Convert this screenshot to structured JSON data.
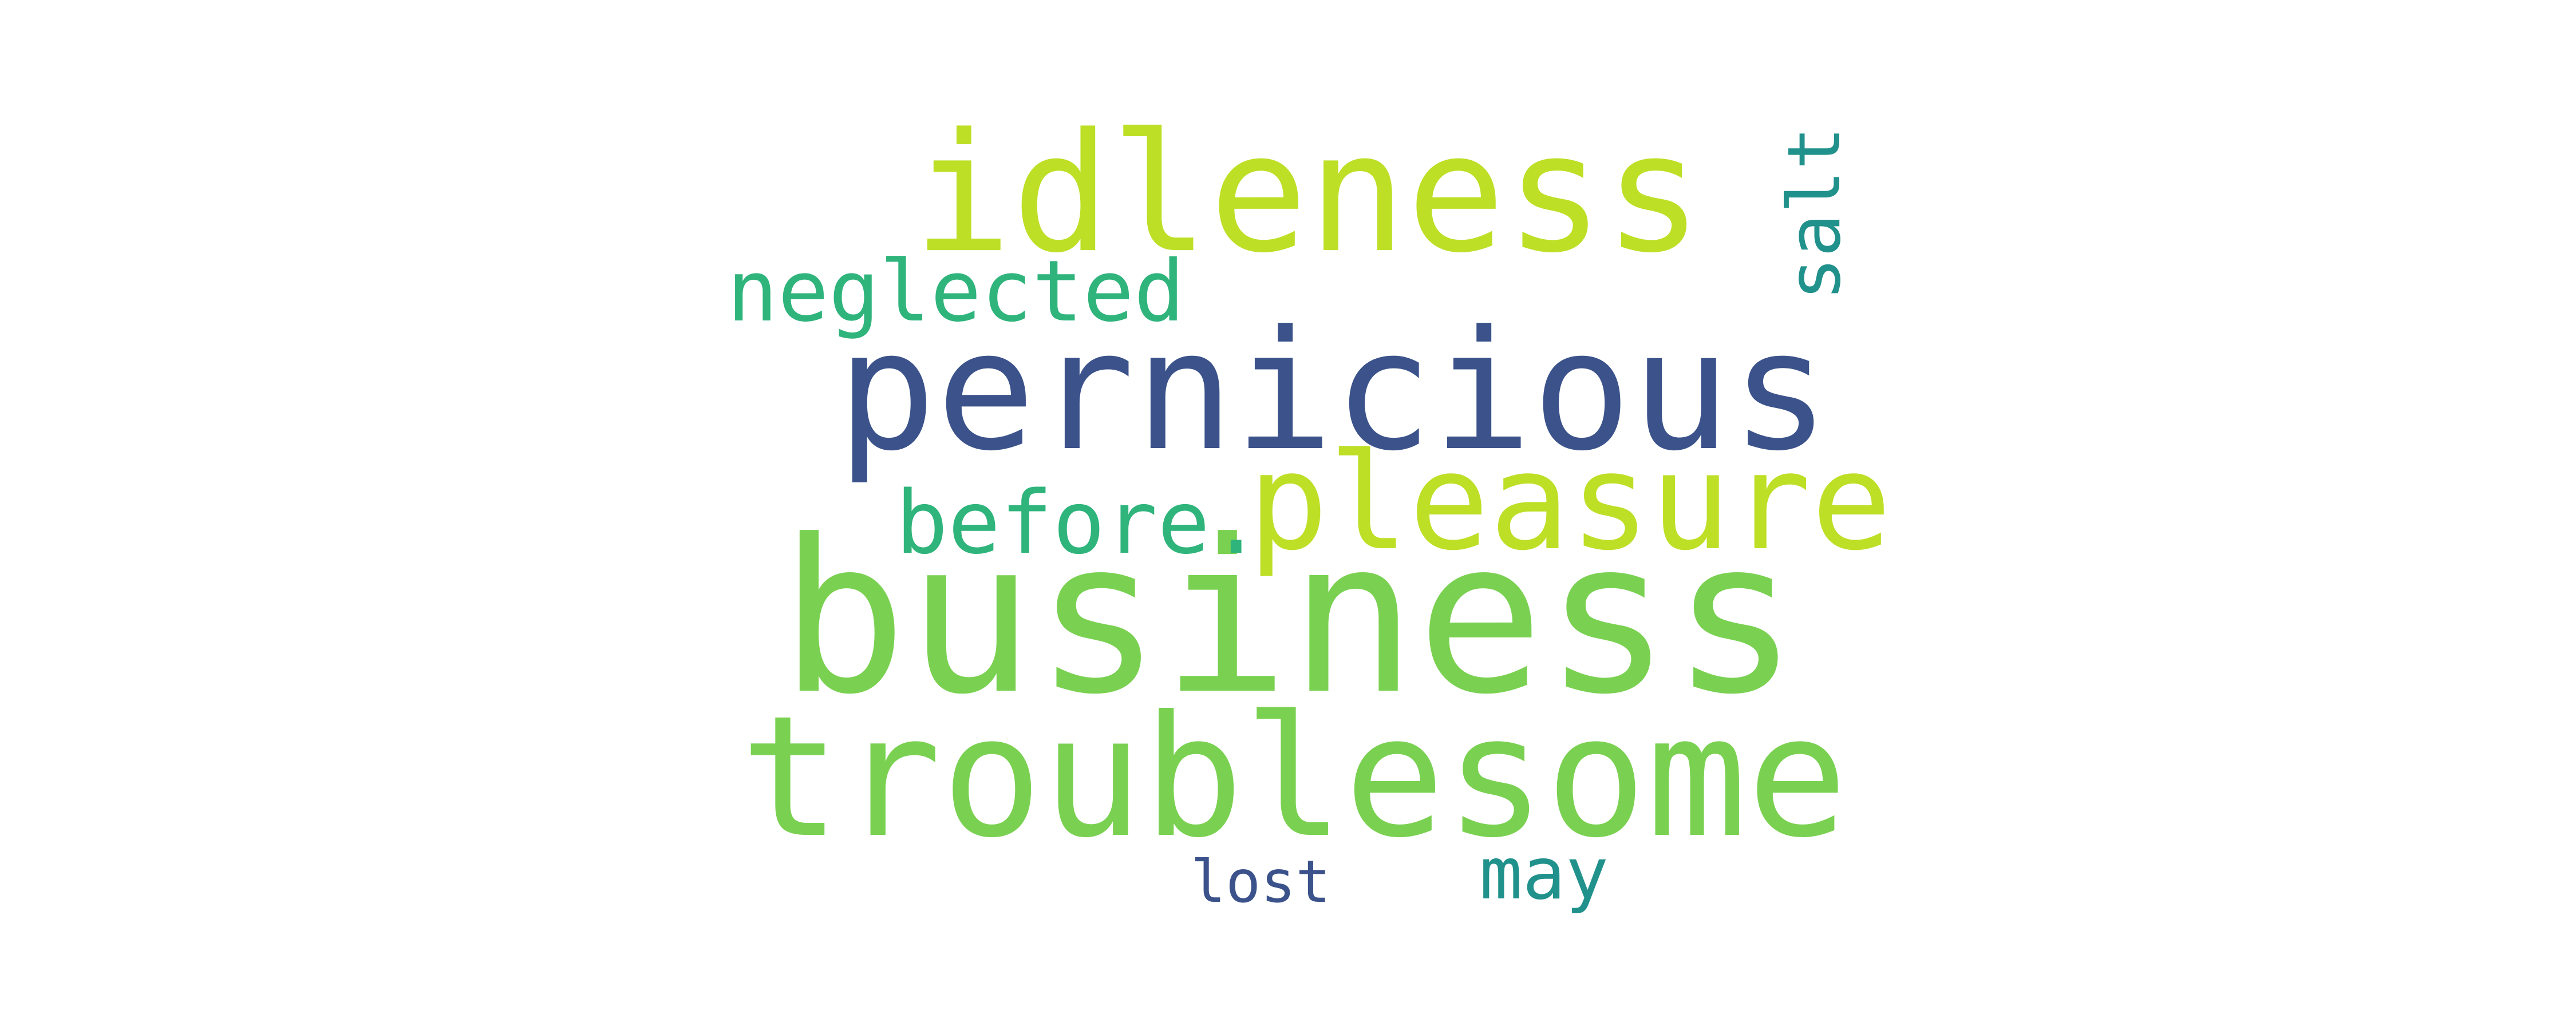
{
  "words": [
    {
      "text": "business",
      "color": "#7ad151"
    },
    {
      "text": "idleness",
      "color": "#bddf26"
    },
    {
      "text": "pernicious",
      "color": "#3b528b"
    },
    {
      "text": "troublesome",
      "color": "#7ad151"
    },
    {
      "text": "pleasure",
      "color": "#bddf26"
    },
    {
      "text": "neglected",
      "color": "#2fb47c"
    },
    {
      "text": "before.",
      "color": "#2fb47c"
    },
    {
      "text": "salt",
      "color": "#21918c"
    },
    {
      "text": "lost",
      "color": "#3b528b"
    },
    {
      "text": "may",
      "color": "#21918c"
    }
  ]
}
